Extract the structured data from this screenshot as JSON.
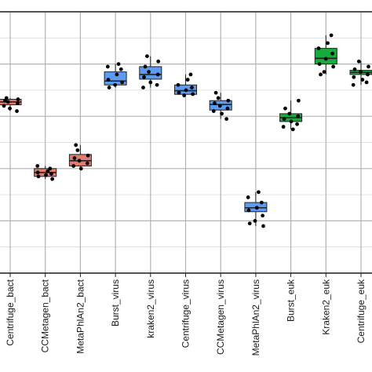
{
  "chart_data": {
    "type": "box",
    "ylim": [
      0,
      1
    ],
    "grid": true,
    "legend": "none",
    "colors": {
      "bact": "#e07b6e",
      "virus": "#5b9bf2",
      "euk": "#17ab3c"
    },
    "categories": [
      {
        "label": "Centrifuge_bact",
        "group": "bact",
        "q1": 0.644,
        "median": 0.655,
        "q3": 0.665,
        "lower": 0.62,
        "upper": 0.67,
        "points": [
          0.62,
          0.63,
          0.64,
          0.65,
          0.655,
          0.66,
          0.665,
          0.67
        ]
      },
      {
        "label": "CCMetagen_bact",
        "group": "bact",
        "q1": 0.37,
        "median": 0.385,
        "q3": 0.4,
        "lower": 0.36,
        "upper": 0.41,
        "points": [
          0.36,
          0.37,
          0.375,
          0.38,
          0.385,
          0.39,
          0.4,
          0.41
        ]
      },
      {
        "label": "MetaPhlAn2_bact",
        "group": "bact",
        "q1": 0.41,
        "median": 0.43,
        "q3": 0.454,
        "lower": 0.4,
        "upper": 0.49,
        "points": [
          0.4,
          0.41,
          0.42,
          0.43,
          0.44,
          0.45,
          0.47,
          0.49
        ]
      },
      {
        "label": "Burst_virus",
        "group": "virus",
        "q1": 0.72,
        "median": 0.735,
        "q3": 0.77,
        "lower": 0.71,
        "upper": 0.8,
        "points": [
          0.71,
          0.72,
          0.73,
          0.74,
          0.76,
          0.78,
          0.79,
          0.8
        ]
      },
      {
        "label": "kraken2_virus",
        "group": "virus",
        "q1": 0.742,
        "median": 0.76,
        "q3": 0.79,
        "lower": 0.71,
        "upper": 0.83,
        "points": [
          0.71,
          0.72,
          0.73,
          0.75,
          0.76,
          0.77,
          0.79,
          0.81,
          0.83
        ]
      },
      {
        "label": "Centrifuge_virus",
        "group": "virus",
        "q1": 0.684,
        "median": 0.698,
        "q3": 0.72,
        "lower": 0.68,
        "upper": 0.76,
        "points": [
          0.68,
          0.685,
          0.69,
          0.7,
          0.71,
          0.72,
          0.74,
          0.76
        ]
      },
      {
        "label": "CCMetagen_virus",
        "group": "virus",
        "q1": 0.624,
        "median": 0.645,
        "q3": 0.66,
        "lower": 0.59,
        "upper": 0.69,
        "points": [
          0.59,
          0.61,
          0.62,
          0.63,
          0.64,
          0.65,
          0.66,
          0.67,
          0.69
        ]
      },
      {
        "label": "MetaPhlAn2_virus",
        "group": "virus",
        "q1": 0.235,
        "median": 0.25,
        "q3": 0.27,
        "lower": 0.18,
        "upper": 0.31,
        "points": [
          0.18,
          0.19,
          0.2,
          0.22,
          0.24,
          0.25,
          0.27,
          0.29,
          0.31
        ]
      },
      {
        "label": "Burst_euk",
        "group": "euk",
        "q1": 0.58,
        "median": 0.595,
        "q3": 0.61,
        "lower": 0.55,
        "upper": 0.66,
        "points": [
          0.55,
          0.56,
          0.57,
          0.58,
          0.59,
          0.6,
          0.61,
          0.63,
          0.66
        ]
      },
      {
        "label": "Kraken2_euk",
        "group": "euk",
        "q1": 0.8,
        "median": 0.822,
        "q3": 0.86,
        "lower": 0.76,
        "upper": 0.91,
        "points": [
          0.76,
          0.77,
          0.79,
          0.8,
          0.82,
          0.84,
          0.86,
          0.88,
          0.91
        ]
      },
      {
        "label": "Centrifuge_euk",
        "group": "euk",
        "q1": 0.76,
        "median": 0.768,
        "q3": 0.776,
        "lower": 0.72,
        "upper": 0.81,
        "points": [
          0.72,
          0.73,
          0.74,
          0.75,
          0.76,
          0.77,
          0.78,
          0.79,
          0.81
        ]
      }
    ]
  }
}
